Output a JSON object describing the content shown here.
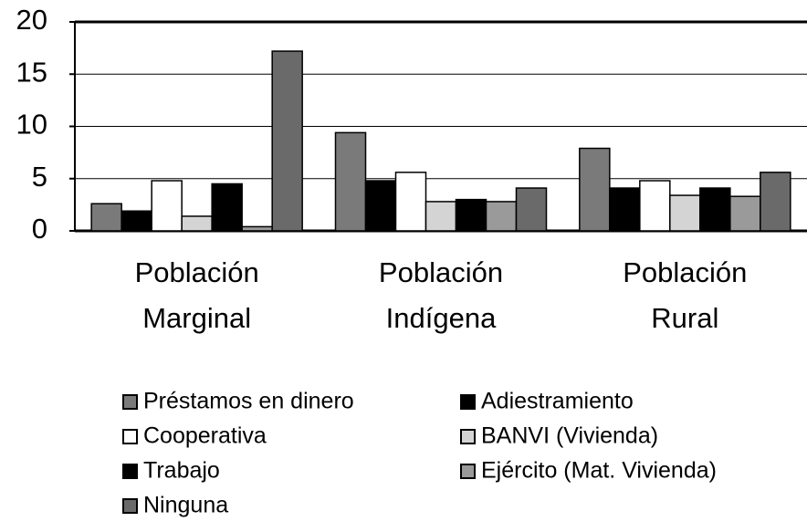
{
  "chart_data": {
    "type": "bar",
    "categories": [
      "Población Marginal",
      "Población Indígena",
      "Población Rural"
    ],
    "series": [
      {
        "name": "Préstamos en dinero",
        "color": "#7a7a7a",
        "values": [
          2.6,
          9.4,
          7.9
        ]
      },
      {
        "name": "Adiestramiento",
        "color": "#000000",
        "values": [
          1.9,
          4.8,
          4.1
        ]
      },
      {
        "name": "Cooperativa",
        "color": "#ffffff",
        "values": [
          4.8,
          5.6,
          4.8
        ]
      },
      {
        "name": "BANVI (Vivienda)",
        "color": "#d4d4d4",
        "values": [
          1.4,
          2.8,
          3.4
        ]
      },
      {
        "name": "Trabajo",
        "color": "#000000",
        "values": [
          4.5,
          3.0,
          4.1
        ]
      },
      {
        "name": "Ejército (Mat. Vivienda)",
        "color": "#9a9a9a",
        "values": [
          0.4,
          2.8,
          3.3
        ]
      },
      {
        "name": "Ninguna",
        "color": "#6a6a6a",
        "values": [
          17.2,
          4.1,
          5.6
        ]
      }
    ],
    "ylim": [
      0,
      20
    ],
    "yticks": [
      0,
      5,
      10,
      15,
      20
    ],
    "grid": true
  }
}
